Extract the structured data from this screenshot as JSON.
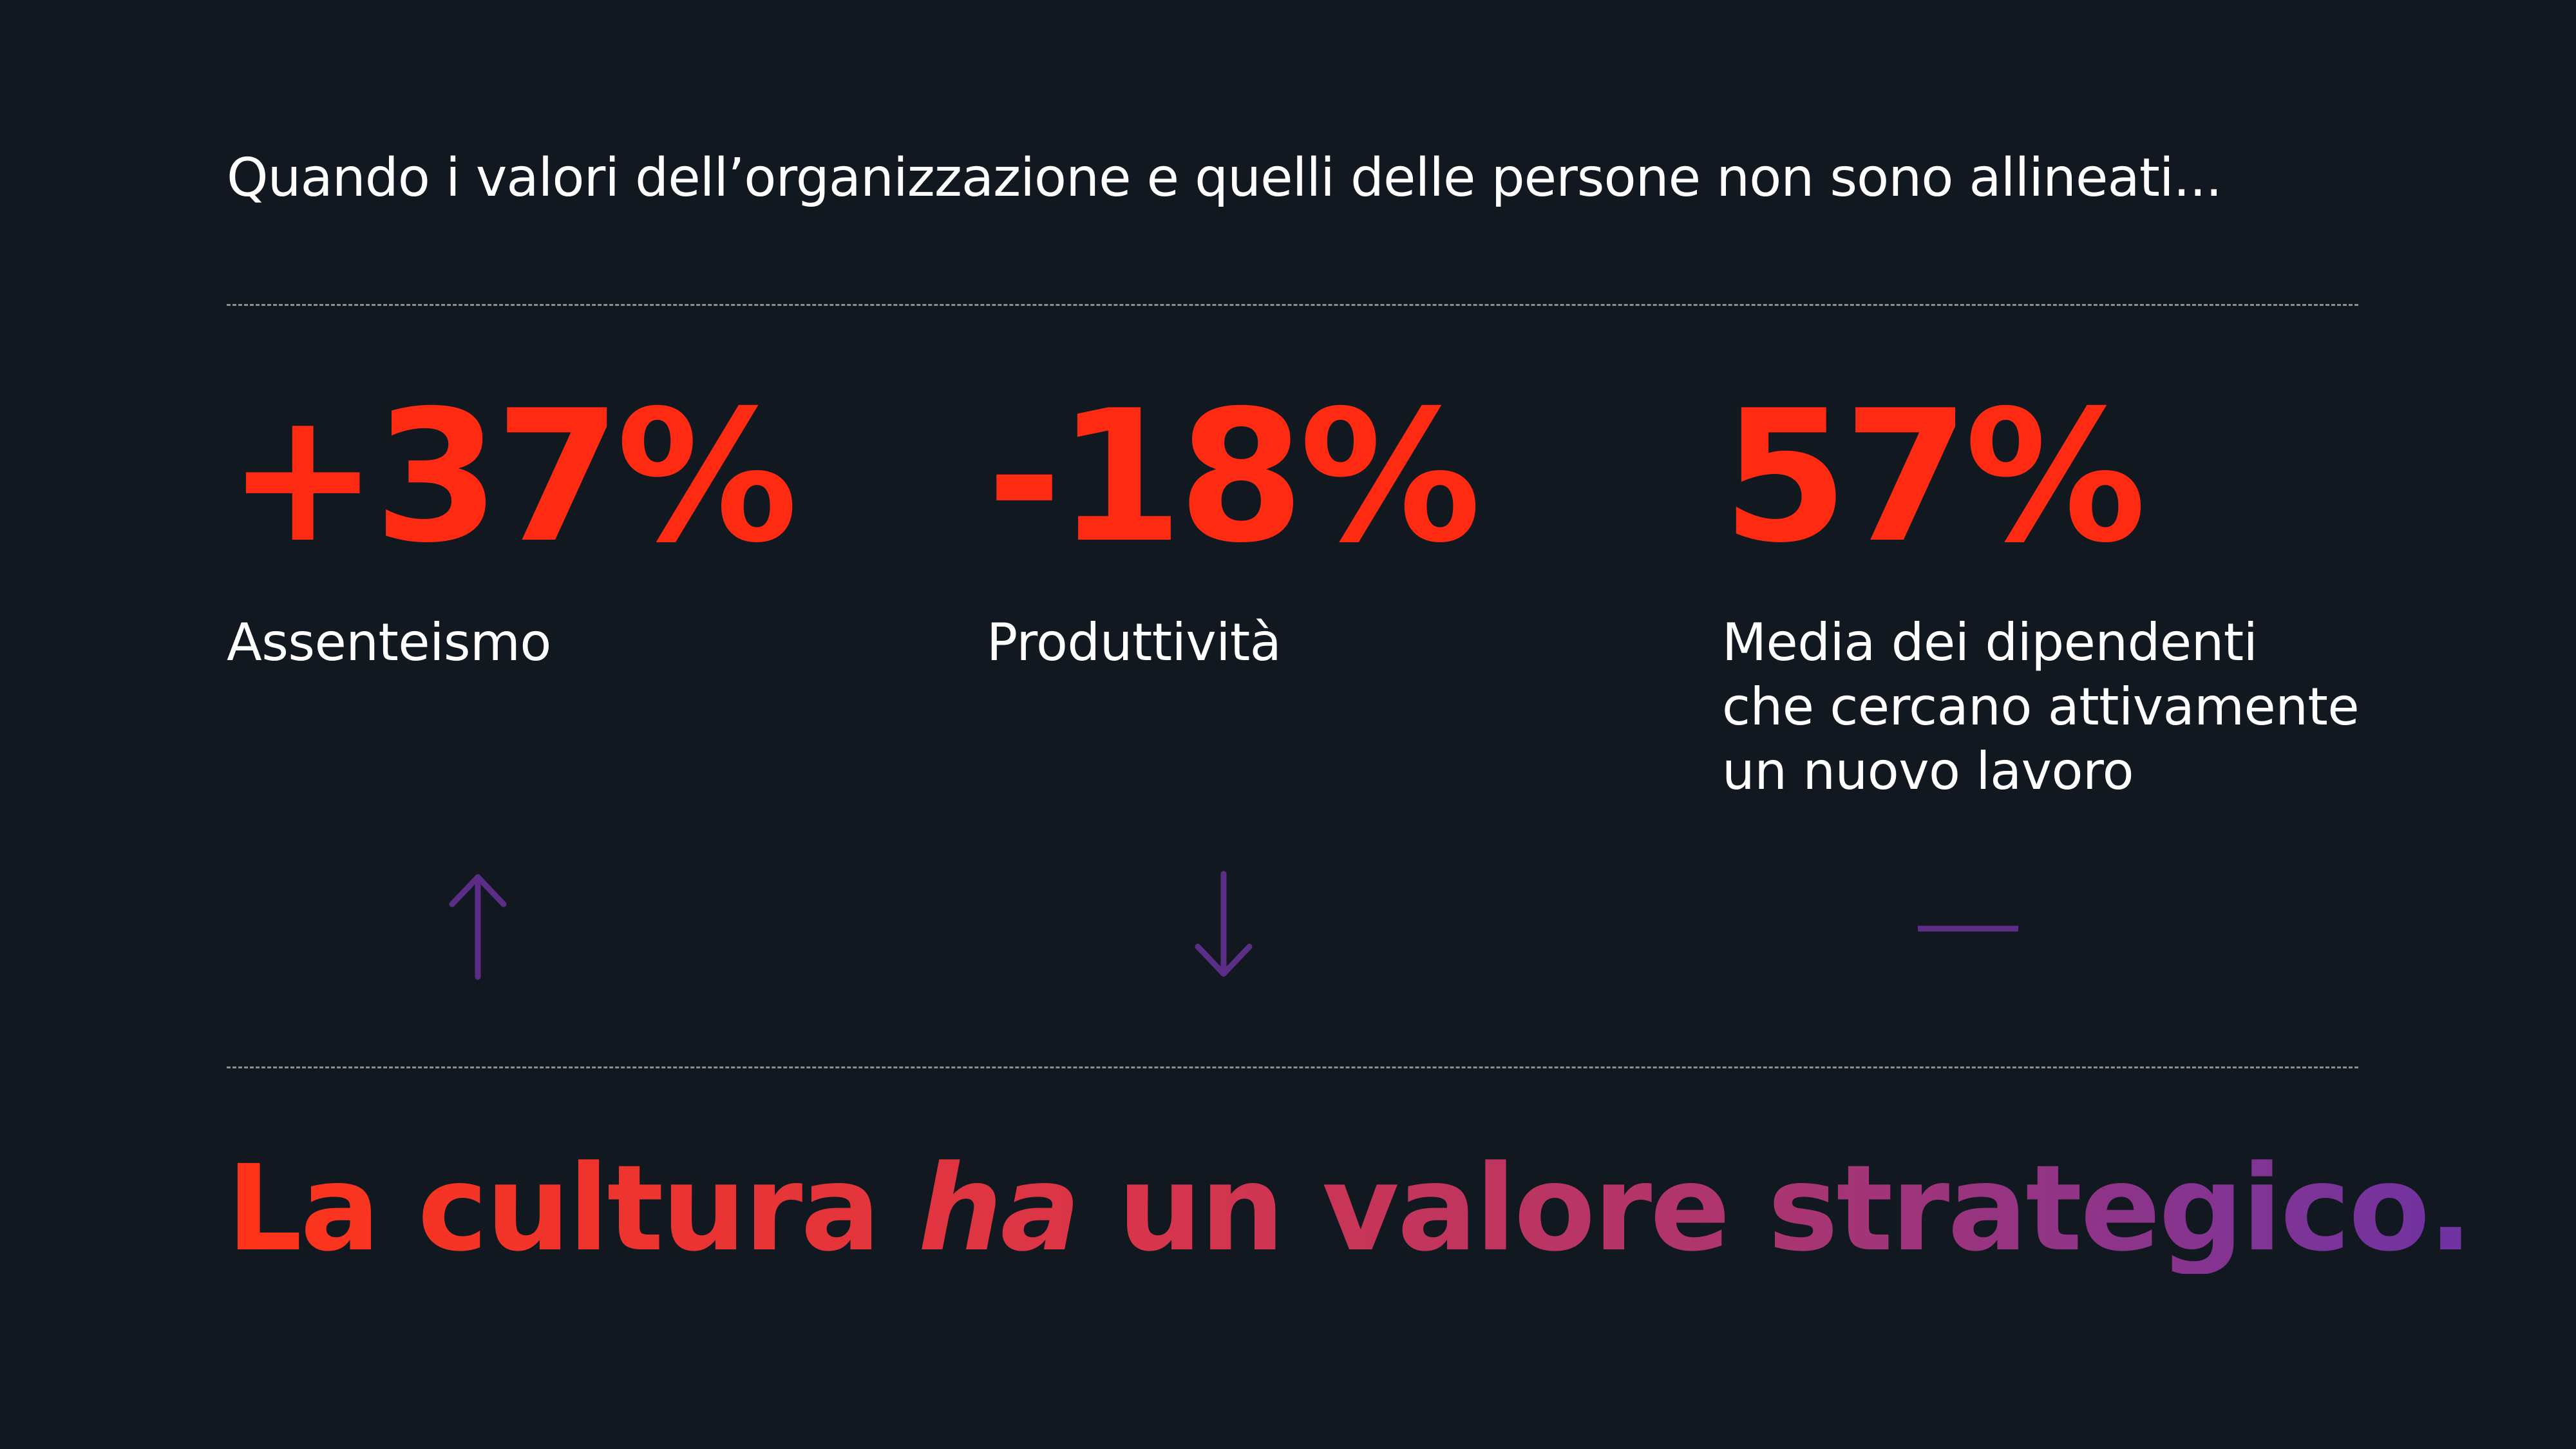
{
  "intro": "Quando i valori dell’organizzazione e quelli delle persone non sono allineati...",
  "stats": [
    {
      "value": "+37%",
      "label": "Assenteismo",
      "trend": "up-arrow-icon"
    },
    {
      "value": "-18%",
      "label": "Produttività",
      "trend": "down-arrow-icon"
    },
    {
      "value": "57%",
      "label": "Media dei dipendenti\nche cercano attivamente\nun nuovo lavoro",
      "trend": "dash-icon"
    }
  ],
  "headline": {
    "before": "La cultura ",
    "emphasis": "ha",
    "after": " un valore strategico."
  },
  "colors": {
    "background": "#111820",
    "stat_value": "#ff2a12",
    "indicator": "#5b2d86",
    "headline_gradient_start": "#ff3419",
    "headline_gradient_end": "#6e33a3",
    "divider": "#8a8f96"
  }
}
